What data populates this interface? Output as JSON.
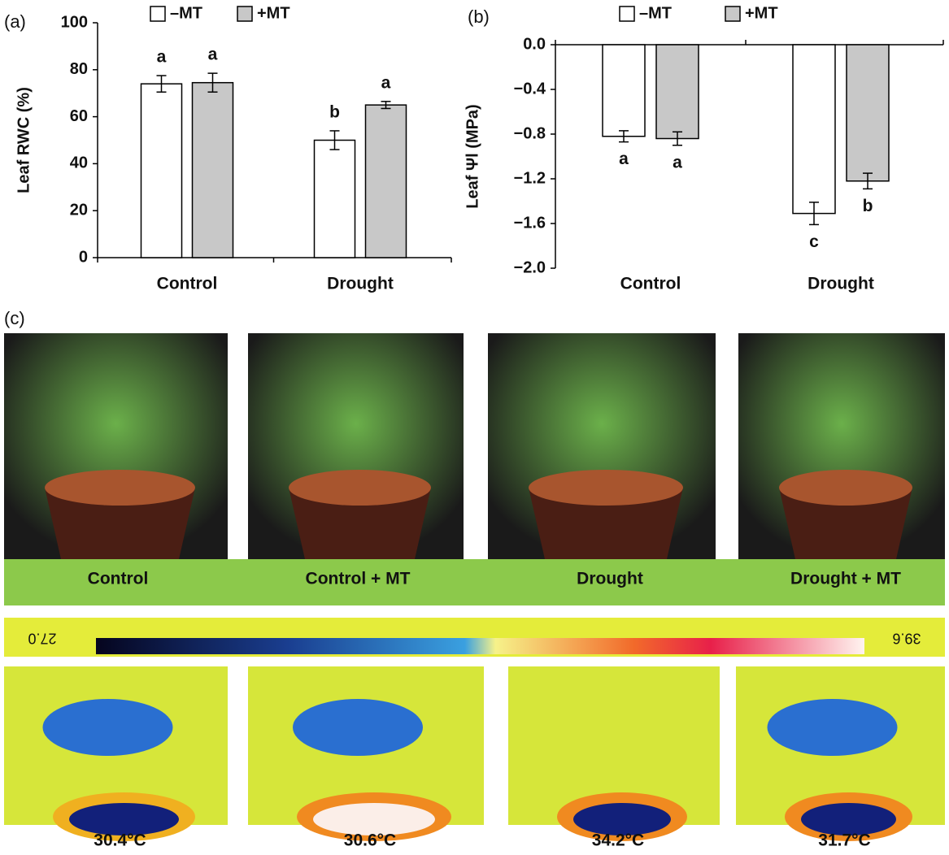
{
  "chart_data": [
    {
      "type": "bar",
      "panel": "(a)",
      "ylabel": "Leaf RWC (%)",
      "categories": [
        "Control",
        "Drought"
      ],
      "series": [
        {
          "name": "–MT",
          "color": "#ffffff",
          "values": [
            74,
            50
          ],
          "errors": [
            3.5,
            4
          ],
          "letters": [
            "a",
            "b"
          ]
        },
        {
          "name": "+MT",
          "color": "#c8c8c8",
          "values": [
            74.5,
            65
          ],
          "errors": [
            4,
            1.5
          ],
          "letters": [
            "a",
            "a"
          ]
        }
      ],
      "ylim": [
        0,
        100
      ],
      "yticks": [
        0,
        20,
        40,
        60,
        80,
        100
      ]
    },
    {
      "type": "bar",
      "panel": "(b)",
      "ylabel": "Leaf Ψl (MPa)",
      "categories": [
        "Control",
        "Drought"
      ],
      "series": [
        {
          "name": "–MT",
          "color": "#ffffff",
          "values": [
            -0.82,
            -1.51
          ],
          "errors": [
            0.05,
            0.1
          ],
          "letters": [
            "a",
            "c"
          ]
        },
        {
          "name": "+MT",
          "color": "#c8c8c8",
          "values": [
            -0.84,
            -1.22
          ],
          "errors": [
            0.06,
            0.07
          ],
          "letters": [
            "a",
            "b"
          ]
        }
      ],
      "ylim": [
        -2.0,
        0
      ],
      "yticks": [
        {
          "value": 0,
          "label": "0.0"
        },
        {
          "value": -0.4,
          "label": "−0.4"
        },
        {
          "value": -0.8,
          "label": "−0.8"
        },
        {
          "value": -1.2,
          "label": "−1.2"
        },
        {
          "value": -1.6,
          "label": "−1.6"
        },
        {
          "value": -2.0,
          "label": "−2.0"
        }
      ]
    }
  ],
  "panel_c": {
    "label": "(c)",
    "photos": [
      "Control",
      "Control + MT",
      "Drought",
      "Drought + MT"
    ],
    "scale_min": "27.0",
    "scale_max": "39.6",
    "temperatures": [
      "30.4°C",
      "30.6°C",
      "34.2°C",
      "31.7°C"
    ]
  }
}
